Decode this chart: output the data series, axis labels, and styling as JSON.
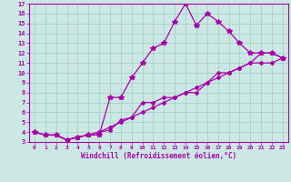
{
  "xlabel": "Windchill (Refroidissement éolien,°C)",
  "bg_color": "#cce8e4",
  "grid_color": "#aad4cc",
  "line_color": "#aa00aa",
  "xlim": [
    -0.5,
    23.5
  ],
  "ylim": [
    3,
    17
  ],
  "xticks": [
    0,
    1,
    2,
    3,
    4,
    5,
    6,
    7,
    8,
    9,
    10,
    11,
    12,
    13,
    14,
    15,
    16,
    17,
    18,
    19,
    20,
    21,
    22,
    23
  ],
  "yticks": [
    3,
    4,
    5,
    6,
    7,
    8,
    9,
    10,
    11,
    12,
    13,
    14,
    15,
    16,
    17
  ],
  "line1_x": [
    0,
    1,
    2,
    3,
    4,
    5,
    6,
    7,
    8,
    9,
    10,
    11,
    12,
    13,
    14,
    15,
    16,
    17,
    18,
    19,
    20,
    21,
    22,
    23
  ],
  "line1_y": [
    4,
    3.7,
    3.7,
    3.2,
    3.5,
    3.7,
    3.7,
    7.5,
    7.5,
    9.5,
    11,
    12.5,
    13,
    15.2,
    17,
    14.8,
    16,
    15.2,
    14.2,
    13,
    12,
    12,
    12,
    11.5
  ],
  "line2_x": [
    0,
    1,
    2,
    3,
    4,
    5,
    6,
    7,
    8,
    9,
    10,
    11,
    12,
    13,
    14,
    15,
    16,
    17,
    18,
    19,
    20,
    21,
    22,
    23
  ],
  "line2_y": [
    4,
    3.7,
    3.7,
    3.2,
    3.5,
    3.7,
    4,
    4.2,
    5.2,
    5.5,
    7,
    7,
    7.5,
    7.5,
    8,
    8,
    9,
    10,
    10,
    10.5,
    11,
    12,
    12,
    11.5
  ],
  "line3_x": [
    0,
    1,
    2,
    3,
    4,
    5,
    6,
    7,
    8,
    9,
    10,
    11,
    12,
    13,
    14,
    15,
    16,
    17,
    18,
    19,
    20,
    21,
    22,
    23
  ],
  "line3_y": [
    4,
    3.7,
    3.7,
    3.2,
    3.5,
    3.7,
    4,
    4.5,
    5,
    5.5,
    6,
    6.5,
    7,
    7.5,
    8,
    8.5,
    9,
    9.5,
    10,
    10.5,
    11,
    11,
    11,
    11.5
  ]
}
